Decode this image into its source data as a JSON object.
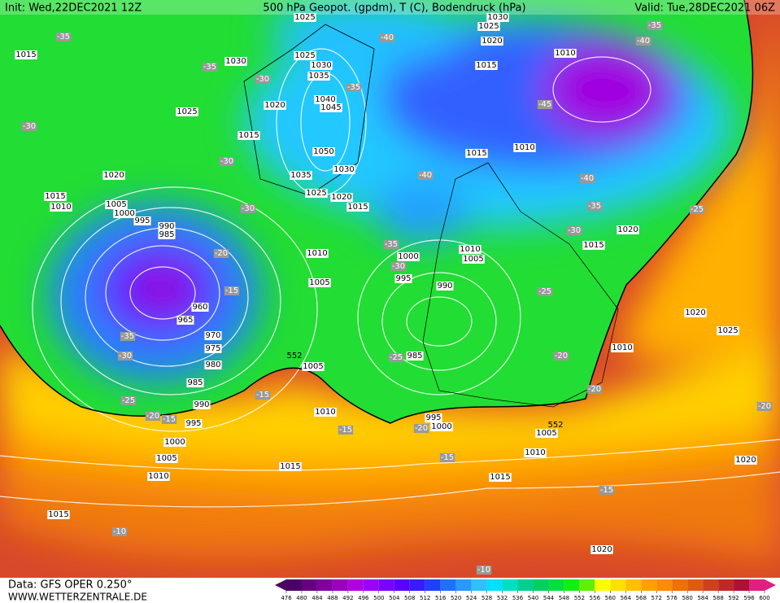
{
  "header": {
    "init": "Init: Wed,22DEC2021 12Z",
    "title": "500 hPa Geopot. (gpdm), T (C), Bodendruck (hPa)",
    "valid": "Valid: Tue,28DEC2021 06Z"
  },
  "footer": {
    "source": "Data: GFS OPER 0.250°",
    "site": "WWW.WETTERZENTRALE.DE"
  },
  "scale": {
    "ticks": [
      476,
      480,
      484,
      488,
      492,
      496,
      500,
      504,
      508,
      512,
      516,
      520,
      524,
      528,
      532,
      536,
      540,
      544,
      548,
      552,
      556,
      560,
      564,
      568,
      572,
      576,
      580,
      584,
      588,
      592,
      596,
      600
    ],
    "colors": [
      "#4b0066",
      "#660080",
      "#8000a0",
      "#9900c0",
      "#b300e0",
      "#9b00ff",
      "#7a00ff",
      "#5a00ff",
      "#3a1aff",
      "#2040ff",
      "#2070ff",
      "#2a98ff",
      "#30c0ff",
      "#00e0ff",
      "#00e0c0",
      "#00d090",
      "#00d060",
      "#00e040",
      "#10f010",
      "#60f000",
      "#ffff00",
      "#ffe000",
      "#ffc000",
      "#ffa000",
      "#ff8c00",
      "#f07000",
      "#e05a10",
      "#d04020",
      "#c02828",
      "#b01038",
      "#e02080"
    ]
  },
  "map": {
    "isobar_labels": [
      "1015",
      "1030",
      "1025",
      "1030",
      "1035",
      "1025",
      "1020",
      "1040",
      "1045",
      "1015",
      "1050",
      "1030",
      "1035",
      "1020",
      "1025",
      "1020",
      "1015",
      "1015",
      "1010",
      "1005",
      "1000",
      "995",
      "990",
      "985",
      "1010",
      "1005",
      "1000",
      "995",
      "990",
      "985",
      "960",
      "965",
      "970",
      "975",
      "980",
      "985",
      "990",
      "995",
      "1000",
      "1005",
      "1010",
      "1015",
      "1005",
      "1010",
      "1015",
      "995",
      "1000",
      "1005",
      "1010",
      "1015",
      "1020",
      "1020",
      "1010",
      "1005",
      "1010",
      "1025",
      "1020",
      "1020",
      "1015",
      "1010",
      "1015",
      "1015",
      "1020",
      "1025",
      "1030",
      "1010",
      "1025"
    ],
    "temperature_labels": [
      "-35",
      "-35",
      "-30",
      "-35",
      "-40",
      "-40",
      "-35",
      "-45",
      "-40",
      "-35",
      "-30",
      "-40",
      "-35",
      "-30",
      "-25",
      "-20",
      "-20",
      "-25",
      "-30",
      "-30",
      "-30",
      "-20",
      "-15",
      "-35",
      "-30",
      "-25",
      "-20",
      "-15",
      "-15",
      "-15",
      "-20",
      "-15",
      "-15",
      "-10",
      "-10",
      "-20",
      "-25"
    ],
    "contour_labels": [
      "552",
      "552"
    ]
  }
}
